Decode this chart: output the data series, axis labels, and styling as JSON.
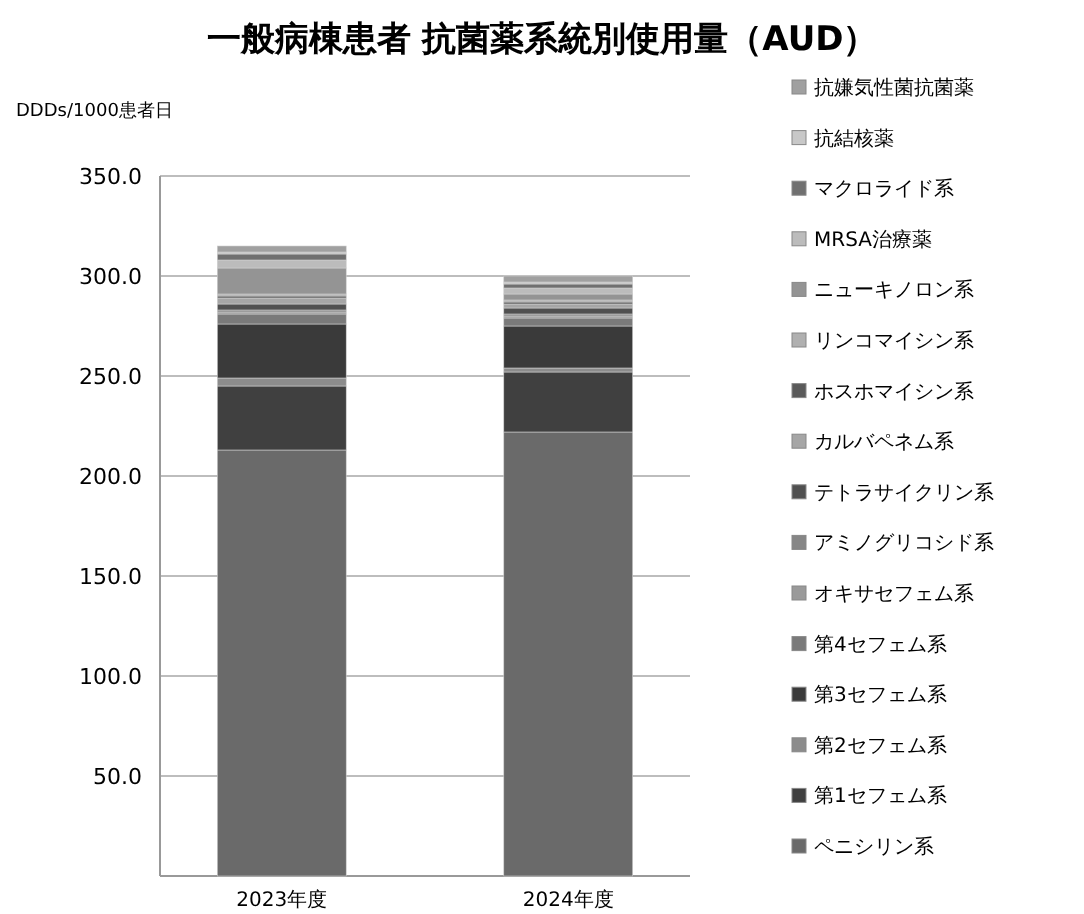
{
  "chart_data": {
    "type": "bar",
    "stacked": true,
    "title": "一般病棟患者 抗菌薬系統別使用量（AUD）",
    "ylabel": "DDDs/1000患者日",
    "categories": [
      "2023年度",
      "2024年度"
    ],
    "ylim": [
      0,
      350
    ],
    "yticks": [
      {
        "value": 50,
        "label": "50.0"
      },
      {
        "value": 100,
        "label": "100.0"
      },
      {
        "value": 150,
        "label": "150.0"
      },
      {
        "value": 200,
        "label": "200.0"
      },
      {
        "value": 250,
        "label": "250.0"
      },
      {
        "value": 300,
        "label": "300.0"
      },
      {
        "value": 350,
        "label": "350.0"
      }
    ],
    "grid": "y",
    "legend": "right",
    "series": [
      {
        "name": "ペニシリン系",
        "color": "#6a6a6a",
        "values": [
          213,
          222
        ]
      },
      {
        "name": "第1セフェム系",
        "color": "#404040",
        "values": [
          32,
          30
        ]
      },
      {
        "name": "第2セフェム系",
        "color": "#8c8c8c",
        "values": [
          4,
          2
        ]
      },
      {
        "name": "第3セフェム系",
        "color": "#3a3a3a",
        "values": [
          27,
          21
        ]
      },
      {
        "name": "第4セフェム系",
        "color": "#7a7a7a",
        "values": [
          5,
          4
        ]
      },
      {
        "name": "オキサセフェム系",
        "color": "#9a9a9a",
        "values": [
          1,
          1
        ]
      },
      {
        "name": "アミノグリコシド系",
        "color": "#868686",
        "values": [
          1,
          1
        ]
      },
      {
        "name": "テトラサイクリン系",
        "color": "#505050",
        "values": [
          3,
          3
        ]
      },
      {
        "name": "カルバペネム系",
        "color": "#a6a6a6",
        "values": [
          3,
          2
        ]
      },
      {
        "name": "ホスホマイシン系",
        "color": "#5a5a5a",
        "values": [
          1,
          1
        ]
      },
      {
        "name": "リンコマイシン系",
        "color": "#b0b0b0",
        "values": [
          1,
          1
        ]
      },
      {
        "name": "ニューキノロン系",
        "color": "#949494",
        "values": [
          13,
          3
        ]
      },
      {
        "name": "MRSA治療薬",
        "color": "#bcbcbc",
        "values": [
          4,
          3
        ]
      },
      {
        "name": "マクロライド系",
        "color": "#707070",
        "values": [
          3,
          2
        ]
      },
      {
        "name": "抗結核薬",
        "color": "#c8c8c8",
        "values": [
          1,
          1
        ]
      },
      {
        "name": "抗嫌気性菌抗菌薬",
        "color": "#a0a0a0",
        "values": [
          3,
          3
        ]
      }
    ]
  }
}
